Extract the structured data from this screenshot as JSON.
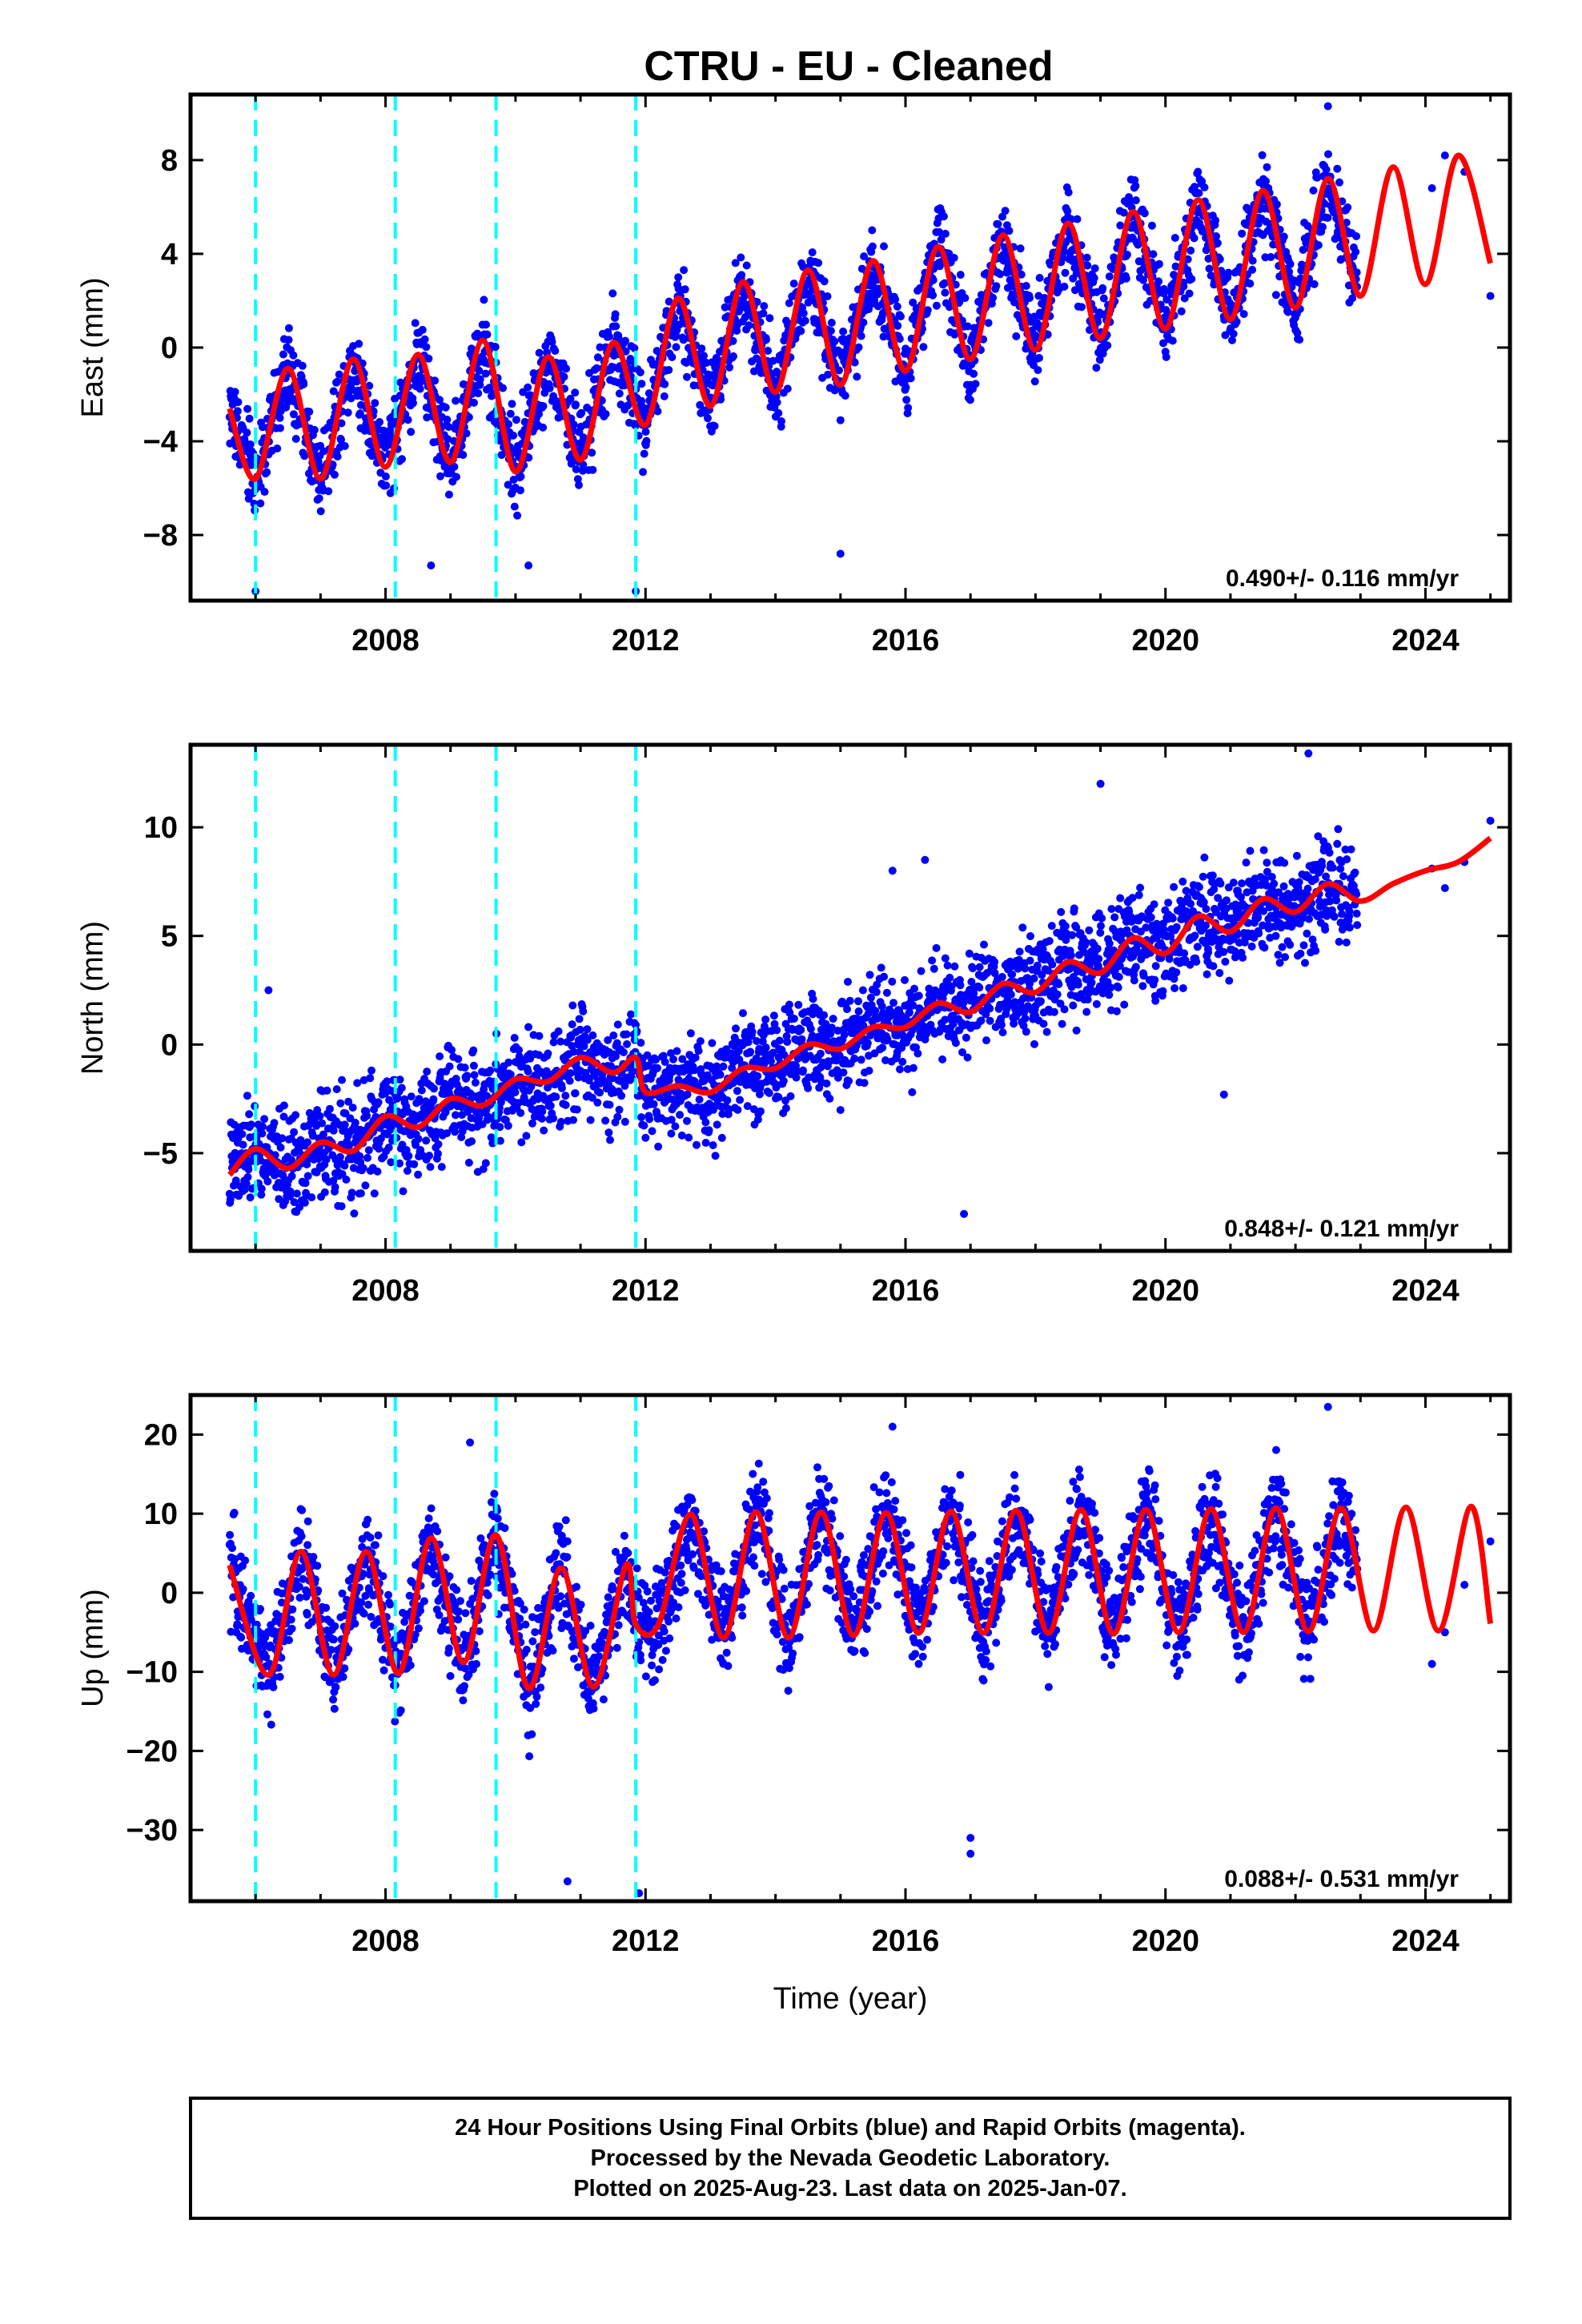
{
  "title": "CTRU  - EU - Cleaned",
  "footer": {
    "line1": "24 Hour Positions Using Final Orbits (blue) and Rapid Orbits (magenta).",
    "line2": "Processed by the Nevada Geodetic Laboratory.",
    "line3": "Plotted on 2025-Aug-23. Last data on 2025-Jan-07."
  },
  "colors": {
    "points": "#0000ff",
    "model": "#ff0000",
    "equipment_change": "#00ffff",
    "frame": "#000000"
  },
  "chart_data": [
    {
      "type": "scatter",
      "ylabel": "East (mm)",
      "xlabel": "",
      "xlim": [
        2005.0,
        2025.3
      ],
      "ylim": [
        -10.8,
        10.8
      ],
      "xticks": [
        2008,
        2012,
        2016,
        2020,
        2024
      ],
      "yticks": [
        -8,
        -4,
        0,
        4,
        8
      ],
      "ytick_labels": [
        "−8",
        "−4",
        "0",
        "4",
        "8"
      ],
      "rate_text": "0.490+/- 0.116 mm/yr",
      "dashed_lines_x": [
        2006.0,
        2008.15,
        2009.7,
        2011.85
      ],
      "model_series": {
        "x": [
          2005.6,
          2006.0,
          2006.5,
          2007.0,
          2007.5,
          2008.0,
          2008.5,
          2009.0,
          2009.5,
          2010.0,
          2010.5,
          2011.0,
          2011.5,
          2012.0,
          2012.5,
          2013.0,
          2013.5,
          2014.0,
          2014.5,
          2015.0,
          2015.5,
          2016.0,
          2016.5,
          2017.0,
          2017.5,
          2018.0,
          2018.5,
          2019.0,
          2019.5,
          2020.0,
          2020.5,
          2021.0,
          2021.5,
          2022.0,
          2022.5,
          2023.0,
          2023.5,
          2024.0,
          2024.5,
          2025.0
        ],
        "y": [
          -2.6,
          -5.6,
          -0.9,
          -5.6,
          -0.5,
          -5.1,
          -0.3,
          -4.9,
          0.3,
          -5.3,
          -0.4,
          -4.8,
          0.2,
          -3.3,
          2.1,
          -2.5,
          2.8,
          -1.9,
          3.3,
          -1.6,
          3.7,
          -1.0,
          4.3,
          -0.5,
          4.8,
          -0.1,
          5.3,
          0.4,
          5.8,
          0.8,
          6.3,
          1.2,
          6.7,
          1.7,
          7.2,
          2.2,
          7.7,
          2.7,
          8.2,
          3.6
        ]
      },
      "points_summary": {
        "trend_mm_per_yr": 0.49,
        "annual_amplitude_mm": 2.5,
        "scatter_mm": 1.3,
        "start_year": 2005.6,
        "end_year": 2022.95,
        "late_points": [
          [
            2024.1,
            6.8
          ],
          [
            2024.3,
            8.2
          ],
          [
            2024.6,
            7.5
          ],
          [
            2025.0,
            2.2
          ]
        ],
        "outliers": [
          [
            2006.0,
            -10.4
          ],
          [
            2011.85,
            -10.4
          ],
          [
            2010.2,
            -9.3
          ],
          [
            2008.7,
            -9.3
          ],
          [
            2015.0,
            -8.8
          ],
          [
            2022.5,
            10.3
          ]
        ]
      }
    },
    {
      "type": "scatter",
      "ylabel": "North (mm)",
      "xlabel": "",
      "xlim": [
        2005.0,
        2025.3
      ],
      "ylim": [
        -9.5,
        13.8
      ],
      "xticks": [
        2008,
        2012,
        2016,
        2020,
        2024
      ],
      "yticks": [
        -5,
        0,
        5,
        10
      ],
      "ytick_labels": [
        "−5",
        "0",
        "5",
        "10"
      ],
      "rate_text": "0.848+/- 0.121 mm/yr",
      "dashed_lines_x": [
        2006.0,
        2008.15,
        2009.7,
        2011.85
      ],
      "model_series": {
        "x": [
          2005.6,
          2006.0,
          2006.5,
          2007.0,
          2007.5,
          2008.0,
          2008.5,
          2009.0,
          2009.5,
          2010.0,
          2010.5,
          2011.0,
          2011.5,
          2011.85,
          2012.0,
          2012.5,
          2013.0,
          2013.5,
          2014.0,
          2014.5,
          2015.0,
          2015.5,
          2016.0,
          2016.5,
          2017.0,
          2017.5,
          2018.0,
          2018.5,
          2019.0,
          2019.5,
          2020.0,
          2020.5,
          2021.0,
          2021.5,
          2022.0,
          2022.5,
          2023.0,
          2023.5,
          2024.0,
          2024.5,
          2025.0
        ],
        "y": [
          -6.0,
          -4.8,
          -5.7,
          -4.5,
          -4.9,
          -3.3,
          -3.8,
          -2.5,
          -2.8,
          -1.6,
          -1.7,
          -0.6,
          -1.3,
          -0.6,
          -2.2,
          -1.9,
          -2.2,
          -1.1,
          -1.1,
          0.0,
          -0.2,
          0.8,
          0.8,
          1.9,
          1.5,
          2.8,
          2.4,
          3.8,
          3.3,
          4.9,
          4.2,
          5.9,
          5.2,
          6.7,
          6.1,
          7.4,
          6.6,
          7.4,
          8.0,
          8.4,
          9.5
        ]
      },
      "points_summary": {
        "trend_mm_per_yr": 0.848,
        "annual_amplitude_mm": 0.6,
        "scatter_mm": 1.6,
        "start_year": 2005.6,
        "end_year": 2022.95,
        "late_points": [
          [
            2024.1,
            8.1
          ],
          [
            2024.3,
            7.2
          ],
          [
            2024.6,
            8.4
          ],
          [
            2025.0,
            10.3
          ]
        ],
        "outliers": [
          [
            2006.2,
            2.5
          ],
          [
            2016.9,
            -7.8
          ],
          [
            2022.2,
            13.4
          ],
          [
            2020.9,
            -2.3
          ],
          [
            2019.0,
            12.0
          ],
          [
            2016.3,
            8.5
          ],
          [
            2015.8,
            8.0
          ]
        ]
      }
    },
    {
      "type": "scatter",
      "ylabel": "Up (mm)",
      "xlabel": "Time (year)",
      "xlim": [
        2005.0,
        2025.3
      ],
      "ylim": [
        -39.0,
        25.0
      ],
      "xticks": [
        2008,
        2012,
        2016,
        2020,
        2024
      ],
      "yticks": [
        -30,
        -20,
        -10,
        0,
        10,
        20
      ],
      "ytick_labels": [
        "−30",
        "−20",
        "−10",
        "0",
        "10",
        "20"
      ],
      "rate_text": "0.088+/- 0.531 mm/yr",
      "dashed_lines_x": [
        2006.0,
        2008.15,
        2009.7,
        2011.85
      ],
      "model_series": {
        "x": [
          2005.6,
          2006.2,
          2006.7,
          2007.2,
          2007.7,
          2008.2,
          2008.7,
          2009.2,
          2009.7,
          2010.2,
          2010.7,
          2011.2,
          2011.7,
          2011.85,
          2012.2,
          2012.7,
          2013.2,
          2013.7,
          2014.2,
          2014.7,
          2015.2,
          2015.7,
          2016.2,
          2016.7,
          2017.2,
          2017.7,
          2018.2,
          2018.7,
          2019.2,
          2019.7,
          2020.2,
          2020.7,
          2021.2,
          2021.7,
          2022.2,
          2022.7,
          2023.2,
          2023.7,
          2024.2,
          2024.7,
          2025.0
        ],
        "y": [
          3.5,
          -10.4,
          5.2,
          -10.4,
          5.2,
          -10.2,
          6.9,
          -8.8,
          7.3,
          -12.1,
          3.1,
          -11.9,
          3.5,
          -4.0,
          -4.0,
          9.9,
          -5.7,
          10.2,
          -5.7,
          10.2,
          -5.4,
          10.1,
          -5.1,
          10.3,
          -5.1,
          10.4,
          -5.1,
          10.5,
          -5.2,
          10.5,
          -5.0,
          10.6,
          -5.0,
          10.7,
          -4.9,
          10.7,
          -4.8,
          10.8,
          -4.8,
          10.9,
          -3.9
        ]
      },
      "points_summary": {
        "trend_mm_per_yr": 0.088,
        "annual_amplitude_mm": 8.0,
        "scatter_mm": 4.5,
        "start_year": 2005.6,
        "end_year": 2022.95,
        "late_points": [
          [
            2024.1,
            -9.0
          ],
          [
            2024.3,
            -5.0
          ],
          [
            2024.6,
            1.0
          ],
          [
            2025.0,
            6.5
          ]
        ],
        "outliers": [
          [
            2010.8,
            -36.5
          ],
          [
            2011.9,
            -38.0
          ],
          [
            2017.0,
            -33.0
          ],
          [
            2017.0,
            -31.0
          ],
          [
            2022.5,
            23.5
          ],
          [
            2015.8,
            21.0
          ],
          [
            2009.3,
            19.0
          ]
        ]
      }
    }
  ]
}
